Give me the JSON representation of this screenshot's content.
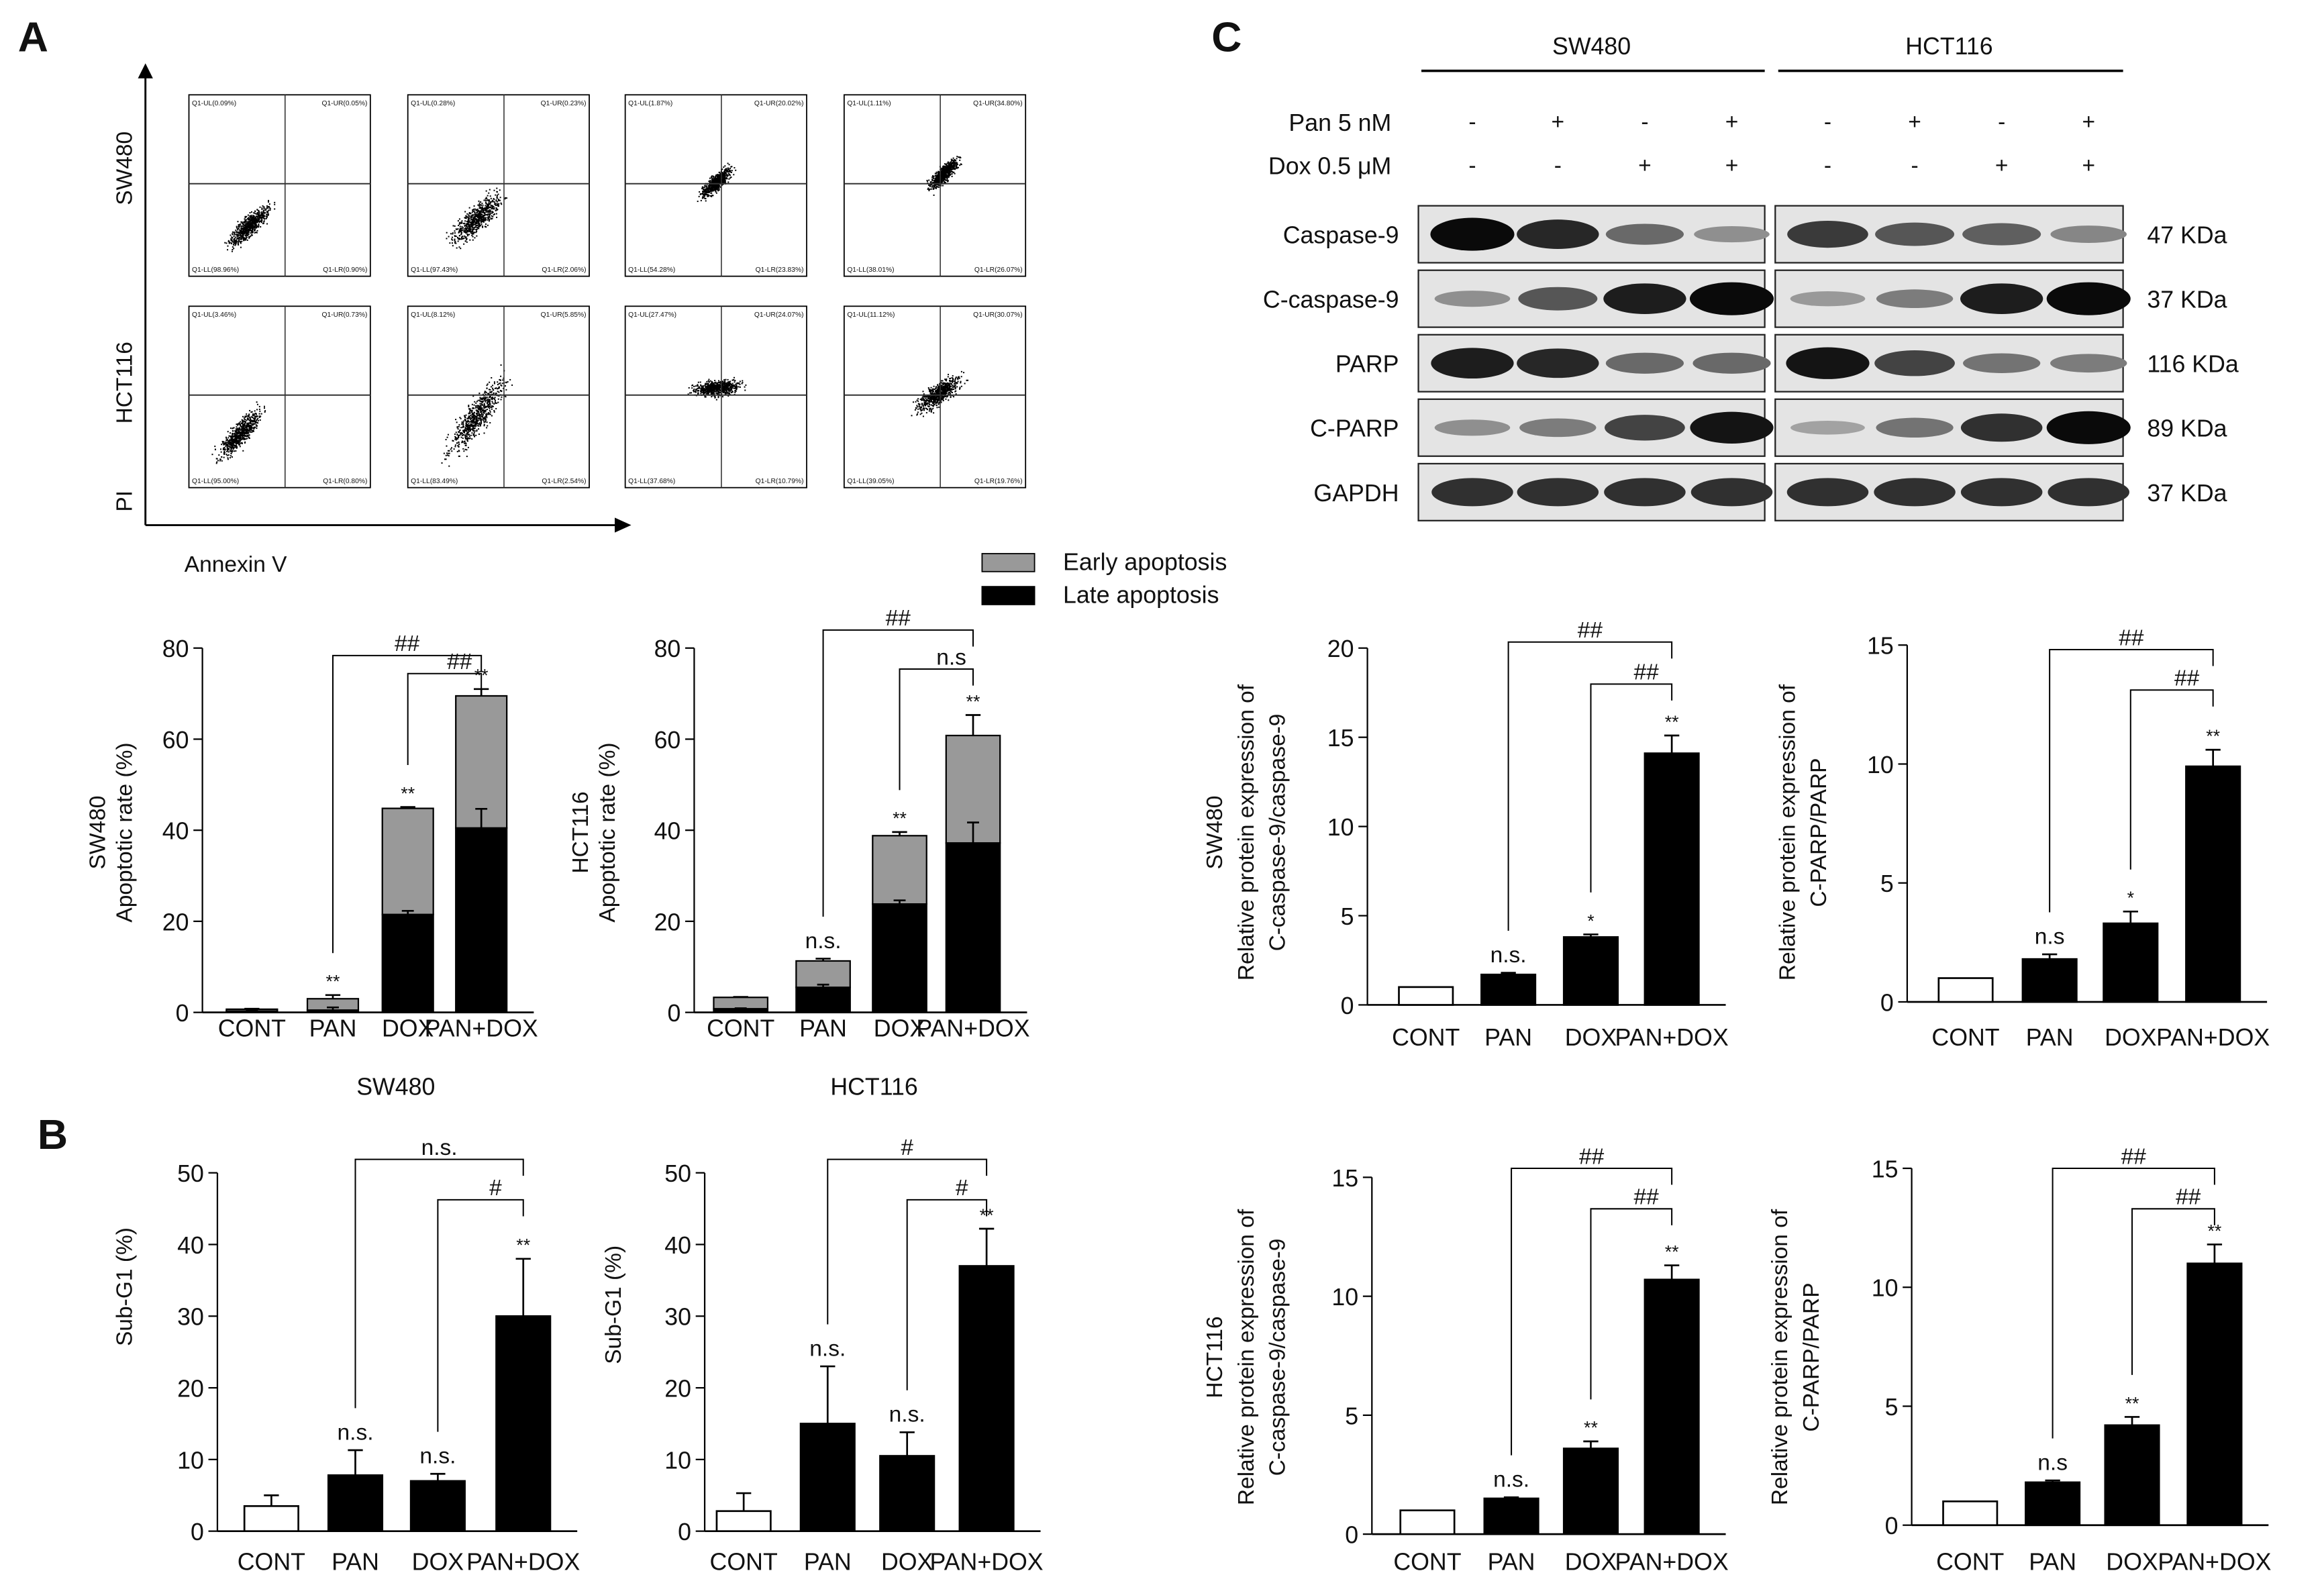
{
  "panels": {
    "A": "A",
    "B": "B",
    "C": "C"
  },
  "flow": {
    "row_labels": [
      "SW480",
      "HCT116"
    ],
    "y_axis_label": "PI",
    "x_axis_label": "Annexin V",
    "plots": [
      [
        {
          "UL": "Q1-UL(0.09%)",
          "UR": "Q1-UR(0.05%)",
          "LL": "Q1-LL(98.96%)",
          "LR": "Q1-LR(0.90%)"
        },
        {
          "UL": "Q1-UL(0.28%)",
          "UR": "Q1-UR(0.23%)",
          "LL": "Q1-LL(97.43%)",
          "LR": "Q1-LR(2.06%)"
        },
        {
          "UL": "Q1-UL(1.87%)",
          "UR": "Q1-UR(20.02%)",
          "LL": "Q1-LL(54.28%)",
          "LR": "Q1-LR(23.83%)"
        },
        {
          "UL": "Q1-UL(1.11%)",
          "UR": "Q1-UR(34.80%)",
          "LL": "Q1-LL(38.01%)",
          "LR": "Q1-LR(26.07%)"
        }
      ],
      [
        {
          "UL": "Q1-UL(3.46%)",
          "UR": "Q1-UR(0.73%)",
          "LL": "Q1-LL(95.00%)",
          "LR": "Q1-LR(0.80%)"
        },
        {
          "UL": "Q1-UL(8.12%)",
          "UR": "Q1-UR(5.85%)",
          "LL": "Q1-LL(83.49%)",
          "LR": "Q1-LR(2.54%)"
        },
        {
          "UL": "Q1-UL(27.47%)",
          "UR": "Q1-UR(24.07%)",
          "LL": "Q1-LL(37.68%)",
          "LR": "Q1-LR(10.79%)"
        },
        {
          "UL": "Q1-UL(11.12%)",
          "UR": "Q1-UR(30.07%)",
          "LL": "Q1-LL(39.05%)",
          "LR": "Q1-LR(19.76%)"
        }
      ]
    ]
  },
  "legend": {
    "items": [
      {
        "label": "Early apoptosis",
        "color": "#999999"
      },
      {
        "label": "Late apoptosis",
        "color": "#000000"
      }
    ]
  },
  "western": {
    "cell_lines": [
      "SW480",
      "HCT116"
    ],
    "treatments": [
      {
        "label": "Pan 5 nM",
        "values": [
          "-",
          "+",
          "-",
          "+",
          "-",
          "+",
          "-",
          "+"
        ]
      },
      {
        "label": "Dox 0.5 μM",
        "values": [
          "-",
          "-",
          "+",
          "+",
          "-",
          "-",
          "+",
          "+"
        ]
      }
    ],
    "rows": [
      {
        "protein": "Caspase-9",
        "size": "47 KDa",
        "band_intensity": [
          1,
          0.85,
          0.5,
          0.3,
          0.75,
          0.6,
          0.55,
          0.35
        ]
      },
      {
        "protein": "C-caspase-9",
        "size": "37 KDa",
        "band_intensity": [
          0.3,
          0.6,
          0.9,
          1,
          0.25,
          0.4,
          0.9,
          1
        ]
      },
      {
        "protein": "PARP",
        "size": "116 KDa",
        "band_intensity": [
          0.9,
          0.85,
          0.5,
          0.5,
          0.95,
          0.7,
          0.45,
          0.4
        ]
      },
      {
        "protein": "C-PARP",
        "size": "89 KDa",
        "band_intensity": [
          0.3,
          0.4,
          0.7,
          0.95,
          0.2,
          0.45,
          0.8,
          1
        ]
      },
      {
        "protein": "GAPDH",
        "size": "37 KDa",
        "band_intensity": [
          0.8,
          0.8,
          0.8,
          0.8,
          0.8,
          0.8,
          0.8,
          0.8
        ]
      }
    ]
  },
  "chart_data": [
    {
      "id": "A-SW480",
      "type": "bar",
      "stacked": true,
      "categories": [
        "CONT",
        "PAN",
        "DOX",
        "PAN+DOX"
      ],
      "series": [
        {
          "name": "Late apoptosis",
          "values": [
            0.3,
            0.5,
            21.5,
            40.5
          ],
          "errors": [
            0.1,
            0.6,
            0.8,
            4.2
          ]
        },
        {
          "name": "Early apoptosis",
          "values": [
            0.4,
            2.5,
            23.3,
            29.0
          ],
          "errors": [
            0.1,
            0.8,
            0.3,
            1.5
          ]
        }
      ],
      "ylabel": [
        "SW480",
        "Apoptotic rate (%)"
      ],
      "xlabel": "SW480",
      "ylim": [
        0,
        80
      ],
      "yticks": [
        "0",
        "20",
        "40",
        "60",
        "80"
      ],
      "significance": [
        "",
        "**",
        "**",
        "**"
      ],
      "brackets": [
        {
          "from": 1,
          "to": 3,
          "label": "##"
        },
        {
          "from": 2,
          "to": 3,
          "label": "##"
        }
      ]
    },
    {
      "id": "A-HCT116",
      "type": "bar",
      "stacked": true,
      "categories": [
        "CONT",
        "PAN",
        "DOX",
        "PAN+DOX"
      ],
      "series": [
        {
          "name": "Late apoptosis",
          "values": [
            0.8,
            5.5,
            23.8,
            37.2
          ],
          "errors": [
            0.1,
            0.6,
            0.8,
            4.5
          ]
        },
        {
          "name": "Early apoptosis",
          "values": [
            2.5,
            5.8,
            15.0,
            23.6
          ],
          "errors": [
            0.1,
            0.5,
            0.8,
            4.5
          ]
        }
      ],
      "ylabel": [
        "HCT116",
        "Apoptotic rate (%)"
      ],
      "xlabel": "HCT116",
      "ylim": [
        0,
        80
      ],
      "yticks": [
        "0",
        "20",
        "40",
        "60",
        "80"
      ],
      "significance": [
        "",
        "n.s.",
        "**",
        "**"
      ],
      "brackets": [
        {
          "from": 1,
          "to": 3,
          "label": "##"
        },
        {
          "from": 2,
          "to": 3,
          "label": "n.s"
        }
      ]
    },
    {
      "id": "B-SW480",
      "type": "bar",
      "categories": [
        "CONT",
        "PAN",
        "DOX",
        "PAN+DOX"
      ],
      "values": [
        3.5,
        7.8,
        7.0,
        30.0
      ],
      "errors": [
        1.5,
        3.5,
        1.0,
        8.0
      ],
      "ylabel": [
        "Sub-G1 (%)"
      ],
      "xlabel": "",
      "ylim": [
        0,
        50
      ],
      "yticks": [
        "0",
        "10",
        "20",
        "30",
        "40",
        "50"
      ],
      "significance": [
        "",
        "n.s.",
        "n.s.",
        "**"
      ],
      "brackets": [
        {
          "from": 1,
          "to": 3,
          "label": "n.s."
        },
        {
          "from": 2,
          "to": 3,
          "label": "#"
        }
      ]
    },
    {
      "id": "B-HCT116",
      "type": "bar",
      "categories": [
        "CONT",
        "PAN",
        "DOX",
        "PAN+DOX"
      ],
      "values": [
        2.8,
        15.0,
        10.5,
        37.0
      ],
      "errors": [
        2.5,
        8.0,
        3.3,
        5.2
      ],
      "ylabel": [
        "Sub-G1 (%)"
      ],
      "xlabel": "",
      "ylim": [
        0,
        50
      ],
      "yticks": [
        "0",
        "10",
        "20",
        "30",
        "40",
        "50"
      ],
      "significance": [
        "",
        "n.s.",
        "n.s.",
        "**"
      ],
      "brackets": [
        {
          "from": 1,
          "to": 3,
          "label": "#"
        },
        {
          "from": 2,
          "to": 3,
          "label": "#"
        }
      ]
    },
    {
      "id": "C-SW480-caspase",
      "type": "bar",
      "categories": [
        "CONT",
        "PAN",
        "DOX",
        "PAN+DOX"
      ],
      "values": [
        1.0,
        1.7,
        3.8,
        14.1
      ],
      "errors": [
        0,
        0.1,
        0.15,
        1.0
      ],
      "ylabel": [
        "SW480",
        "Relative protein expression of",
        "C-caspase-9/caspase-9"
      ],
      "xlabel": "",
      "ylim": [
        0,
        20
      ],
      "yticks": [
        "0",
        "5",
        "10",
        "15",
        "20"
      ],
      "significance": [
        "",
        "n.s.",
        "*",
        "**"
      ],
      "brackets": [
        {
          "from": 1,
          "to": 3,
          "label": "##"
        },
        {
          "from": 2,
          "to": 3,
          "label": "##"
        }
      ]
    },
    {
      "id": "C-SW480-PARP",
      "type": "bar",
      "categories": [
        "CONT",
        "PAN",
        "DOX",
        "PAN+DOX"
      ],
      "values": [
        1.0,
        1.8,
        3.3,
        9.9
      ],
      "errors": [
        0,
        0.2,
        0.5,
        0.7
      ],
      "ylabel": [
        "Relative protein expression of",
        "C-PARP/PARP"
      ],
      "xlabel": "",
      "ylim": [
        0,
        15
      ],
      "yticks": [
        "0",
        "5",
        "10",
        "15"
      ],
      "significance": [
        "",
        "n.s",
        "*",
        "**"
      ],
      "brackets": [
        {
          "from": 1,
          "to": 3,
          "label": "##"
        },
        {
          "from": 2,
          "to": 3,
          "label": "##"
        }
      ]
    },
    {
      "id": "C-HCT116-caspase",
      "type": "bar",
      "categories": [
        "CONT",
        "PAN",
        "DOX",
        "PAN+DOX"
      ],
      "values": [
        1.0,
        1.5,
        3.6,
        10.7
      ],
      "errors": [
        0,
        0.05,
        0.3,
        0.6
      ],
      "ylabel": [
        "HCT116",
        "Relative protein expression of",
        "C-caspase-9/caspase-9"
      ],
      "xlabel": "",
      "ylim": [
        0,
        15
      ],
      "yticks": [
        "0",
        "5",
        "10",
        "15"
      ],
      "significance": [
        "",
        "n.s.",
        "**",
        "**"
      ],
      "brackets": [
        {
          "from": 1,
          "to": 3,
          "label": "##"
        },
        {
          "from": 2,
          "to": 3,
          "label": "##"
        }
      ]
    },
    {
      "id": "C-HCT116-PARP",
      "type": "bar",
      "categories": [
        "CONT",
        "PAN",
        "DOX",
        "PAN+DOX"
      ],
      "values": [
        1.0,
        1.8,
        4.2,
        11.0
      ],
      "errors": [
        0,
        0.08,
        0.35,
        0.8
      ],
      "ylabel": [
        "Relative protein expression of",
        "C-PARP/PARP"
      ],
      "xlabel": "",
      "ylim": [
        0,
        15
      ],
      "yticks": [
        "0",
        "5",
        "10",
        "15"
      ],
      "significance": [
        "",
        "n.s",
        "**",
        "**"
      ],
      "brackets": [
        {
          "from": 1,
          "to": 3,
          "label": "##"
        },
        {
          "from": 2,
          "to": 3,
          "label": "##"
        }
      ]
    }
  ]
}
